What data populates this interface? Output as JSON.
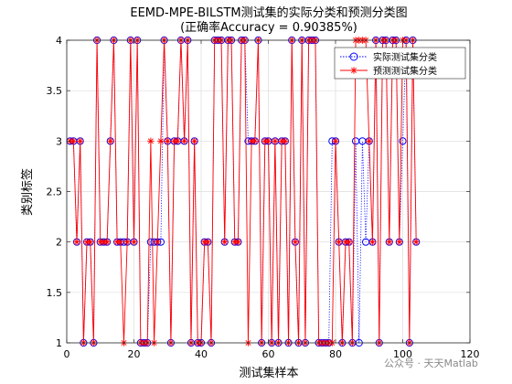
{
  "figure": {
    "watermark": "公众号 · 天天Matlab"
  },
  "chart_data": {
    "type": "line",
    "title": "EEMD-MPE-BILSTM测试集的实际分类和预测分类图",
    "subtitle": "(正确率Accuracy = 0.90385%)",
    "xlabel": "测试集样本",
    "ylabel": "类别标签",
    "xlim": [
      0,
      120
    ],
    "ylim": [
      1,
      4
    ],
    "xticks": [
      0,
      20,
      40,
      60,
      80,
      100,
      120
    ],
    "yticks": [
      1,
      1.5,
      2,
      2.5,
      3,
      3.5,
      4
    ],
    "xtick_labels": [
      "0",
      "20",
      "40",
      "60",
      "80",
      "100",
      "120"
    ],
    "ytick_labels": [
      "1",
      "1.5",
      "2",
      "2.5",
      "3",
      "3.5",
      "4"
    ],
    "grid": true,
    "legend_position": "top-right",
    "colors": {
      "actual": "#0000ff",
      "predicted": "#ff0000"
    },
    "series": [
      {
        "name": "实际测试集分类",
        "style": "dotted line, circle markers",
        "x": [
          1,
          2,
          3,
          4,
          5,
          6,
          7,
          8,
          9,
          10,
          11,
          12,
          13,
          14,
          15,
          16,
          17,
          18,
          19,
          20,
          21,
          22,
          23,
          24,
          25,
          26,
          27,
          28,
          29,
          30,
          31,
          32,
          33,
          34,
          35,
          36,
          37,
          38,
          39,
          40,
          41,
          42,
          43,
          44,
          45,
          46,
          47,
          48,
          49,
          50,
          51,
          52,
          53,
          54,
          55,
          56,
          57,
          58,
          59,
          60,
          61,
          62,
          63,
          64,
          65,
          66,
          67,
          68,
          69,
          70,
          71,
          72,
          73,
          74,
          75,
          76,
          77,
          78,
          79,
          80,
          81,
          82,
          83,
          84,
          85,
          86,
          87,
          88,
          89,
          90,
          91,
          92,
          93,
          94,
          95,
          96,
          97,
          98,
          99,
          100,
          101,
          102,
          103,
          104
        ],
        "values": [
          3,
          3,
          2,
          3,
          1,
          2,
          2,
          1,
          4,
          2,
          2,
          2,
          3,
          4,
          2,
          2,
          2,
          2,
          4,
          2,
          4,
          1,
          1,
          1,
          2,
          2,
          2,
          2,
          4,
          3,
          1,
          3,
          3,
          4,
          3,
          4,
          1,
          3,
          1,
          1,
          2,
          2,
          1,
          4,
          4,
          4,
          2,
          4,
          4,
          2,
          2,
          4,
          4,
          3,
          3,
          3,
          4,
          1,
          3,
          3,
          1,
          3,
          1,
          3,
          3,
          1,
          4,
          2,
          1,
          4,
          1,
          4,
          4,
          4,
          1,
          1,
          1,
          1,
          3,
          3,
          2,
          1,
          2,
          2,
          1,
          3,
          1,
          3,
          2,
          3,
          2,
          4,
          1,
          4,
          4,
          2,
          4,
          4,
          2,
          3,
          4,
          1,
          4,
          2
        ]
      },
      {
        "name": "预测测试集分类",
        "style": "solid line, asterisk markers",
        "x": [
          1,
          2,
          3,
          4,
          5,
          6,
          7,
          8,
          9,
          10,
          11,
          12,
          13,
          14,
          15,
          16,
          17,
          18,
          19,
          20,
          21,
          22,
          23,
          24,
          25,
          26,
          27,
          28,
          29,
          30,
          31,
          32,
          33,
          34,
          35,
          36,
          37,
          38,
          39,
          40,
          41,
          42,
          43,
          44,
          45,
          46,
          47,
          48,
          49,
          50,
          51,
          52,
          53,
          54,
          55,
          56,
          57,
          58,
          59,
          60,
          61,
          62,
          63,
          64,
          65,
          66,
          67,
          68,
          69,
          70,
          71,
          72,
          73,
          74,
          75,
          76,
          77,
          78,
          79,
          80,
          81,
          82,
          83,
          84,
          85,
          86,
          87,
          88,
          89,
          90,
          91,
          92,
          93,
          94,
          95,
          96,
          97,
          98,
          99,
          100,
          101,
          102,
          103,
          104
        ],
        "values": [
          3,
          3,
          2,
          3,
          1,
          2,
          2,
          1,
          4,
          2,
          2,
          2,
          3,
          4,
          2,
          2,
          1,
          2,
          4,
          2,
          4,
          1,
          1,
          1,
          3,
          1,
          2,
          3,
          4,
          3,
          1,
          3,
          3,
          4,
          3,
          4,
          1,
          3,
          1,
          1,
          2,
          2,
          1,
          4,
          4,
          4,
          2,
          4,
          4,
          2,
          2,
          4,
          4,
          1,
          3,
          3,
          4,
          1,
          3,
          3,
          1,
          3,
          1,
          3,
          3,
          1,
          4,
          2,
          1,
          4,
          1,
          4,
          4,
          4,
          1,
          1,
          1,
          1,
          1,
          3,
          2,
          1,
          2,
          2,
          1,
          4,
          4,
          4,
          4,
          3,
          2,
          4,
          1,
          4,
          4,
          2,
          4,
          4,
          2,
          4,
          4,
          1,
          4,
          2
        ]
      }
    ]
  }
}
